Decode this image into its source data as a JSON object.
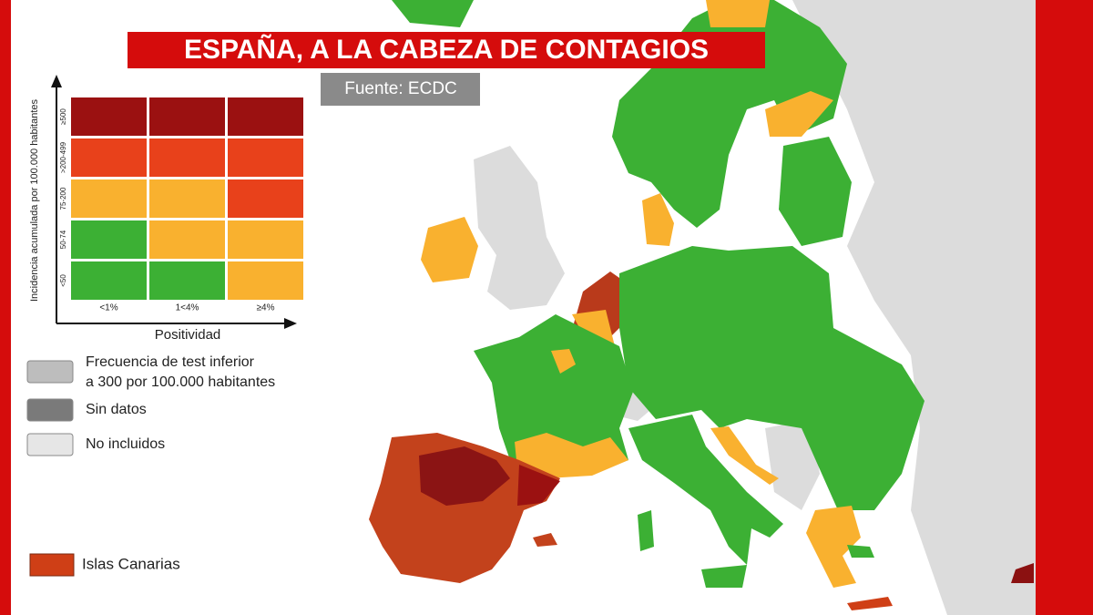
{
  "header": {
    "title": "ESPAÑA, A LA CABEZA DE CONTAGIOS",
    "source": "Fuente: ECDC"
  },
  "legend": {
    "y_label": "Incidencia acumulada por 100.000 habitantes",
    "x_label": "Positividad",
    "columns": [
      "<1%",
      "1<4%",
      "≥4%"
    ],
    "rows": [
      {
        "label": "≥500",
        "colors": [
          "#9b1111",
          "#9b1111",
          "#9b1111"
        ]
      },
      {
        "label": ">200-499",
        "colors": [
          "#e8411b",
          "#e8411b",
          "#e8411b"
        ]
      },
      {
        "label": "75-200",
        "colors": [
          "#f9b12f",
          "#f9b12f",
          "#e8411b"
        ]
      },
      {
        "label": "50-74",
        "colors": [
          "#3cb034",
          "#f9b12f",
          "#f9b12f"
        ]
      },
      {
        "label": "<50",
        "colors": [
          "#3cb034",
          "#3cb034",
          "#f9b12f"
        ]
      }
    ],
    "items": [
      {
        "lines": [
          "Frecuencia de test inferior",
          "a 300 por 100.000 habitantes"
        ],
        "color": "#bdbdbd"
      },
      {
        "lines": [
          "Sin datos"
        ],
        "color": "#7a7a7a"
      },
      {
        "lines": [
          "No incluidos"
        ],
        "color": "#e6e6e6"
      }
    ],
    "highlight": {
      "label": "Islas Canarias",
      "color": "#cf3f16"
    }
  }
}
